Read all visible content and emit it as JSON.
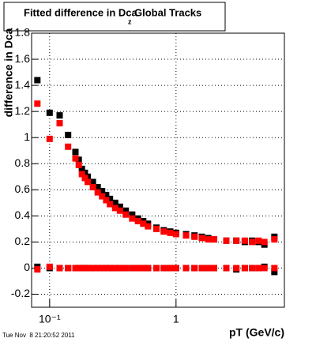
{
  "chart_data": {
    "type": "scatter",
    "title": "Fitted difference in Dca",
    "title_subscript": "z",
    "title_suffix": "Global Tracks",
    "y_label": "difference in Dca",
    "x_label": "pT (GeV/c)",
    "timestamp": "Tue Nov  8 21:20:52 2011",
    "log_x": true,
    "grid": true,
    "xlim": [
      0.072,
      7.2
    ],
    "ylim": [
      -0.3,
      1.8
    ],
    "xticks": [
      {
        "value": 0.1,
        "label": "10⁻¹"
      },
      1
    ],
    "yticks": [
      -0.2,
      0,
      0.2,
      0.4,
      0.6,
      0.8,
      1,
      1.2,
      1.4,
      1.6,
      1.8
    ],
    "x": [
      0.08,
      0.1,
      0.12,
      0.14,
      0.16,
      0.17,
      0.18,
      0.19,
      0.2,
      0.22,
      0.24,
      0.26,
      0.28,
      0.3,
      0.33,
      0.36,
      0.4,
      0.45,
      0.5,
      0.55,
      0.6,
      0.7,
      0.8,
      0.9,
      1.0,
      1.2,
      1.4,
      1.6,
      1.8,
      2.0,
      2.5,
      3.0,
      3.5,
      4.0,
      4.5,
      5.0,
      6.0
    ],
    "series": [
      {
        "color": "#000000",
        "values": [
          1.44,
          1.19,
          1.17,
          1.02,
          0.89,
          0.83,
          0.76,
          0.73,
          0.7,
          0.66,
          0.62,
          0.59,
          0.56,
          0.53,
          0.5,
          0.47,
          0.44,
          0.41,
          0.38,
          0.36,
          0.34,
          0.31,
          0.29,
          0.28,
          0.27,
          0.26,
          0.25,
          0.24,
          0.23,
          0.22,
          0.21,
          0.21,
          0.2,
          0.21,
          0.2,
          0.18,
          0.24
        ]
      },
      {
        "color": "#000000",
        "values": [
          0.01,
          0.0,
          0.0,
          0.0,
          0.0,
          0.0,
          0.0,
          0.0,
          0.0,
          0.0,
          0.0,
          0.0,
          0.0,
          0.0,
          0.0,
          0.0,
          0.0,
          0.0,
          0.0,
          0.0,
          0.0,
          0.0,
          0.0,
          0.0,
          0.0,
          0.0,
          0.0,
          0.0,
          0.0,
          0.0,
          0.0,
          -0.01,
          0.0,
          0.0,
          0.0,
          0.01,
          -0.03
        ]
      },
      {
        "color": "#ff0000",
        "values": [
          1.26,
          0.99,
          1.11,
          0.93,
          0.84,
          0.79,
          0.72,
          0.69,
          0.66,
          0.62,
          0.58,
          0.55,
          0.52,
          0.49,
          0.46,
          0.44,
          0.41,
          0.38,
          0.36,
          0.34,
          0.32,
          0.3,
          0.28,
          0.27,
          0.26,
          0.25,
          0.24,
          0.23,
          0.22,
          0.22,
          0.21,
          0.21,
          0.21,
          0.2,
          0.21,
          0.2,
          0.22
        ]
      },
      {
        "color": "#ff0000",
        "values": [
          -0.01,
          0.01,
          0.0,
          0.0,
          0.0,
          0.0,
          0.0,
          0.0,
          0.0,
          0.0,
          0.0,
          0.0,
          0.0,
          0.0,
          0.0,
          0.0,
          0.0,
          0.0,
          0.0,
          0.0,
          0.0,
          0.0,
          0.0,
          0.0,
          0.0,
          0.0,
          0.0,
          0.0,
          0.0,
          0.0,
          0.0,
          0.0,
          0.0,
          0.0,
          0.0,
          0.0,
          0.0
        ]
      }
    ]
  }
}
